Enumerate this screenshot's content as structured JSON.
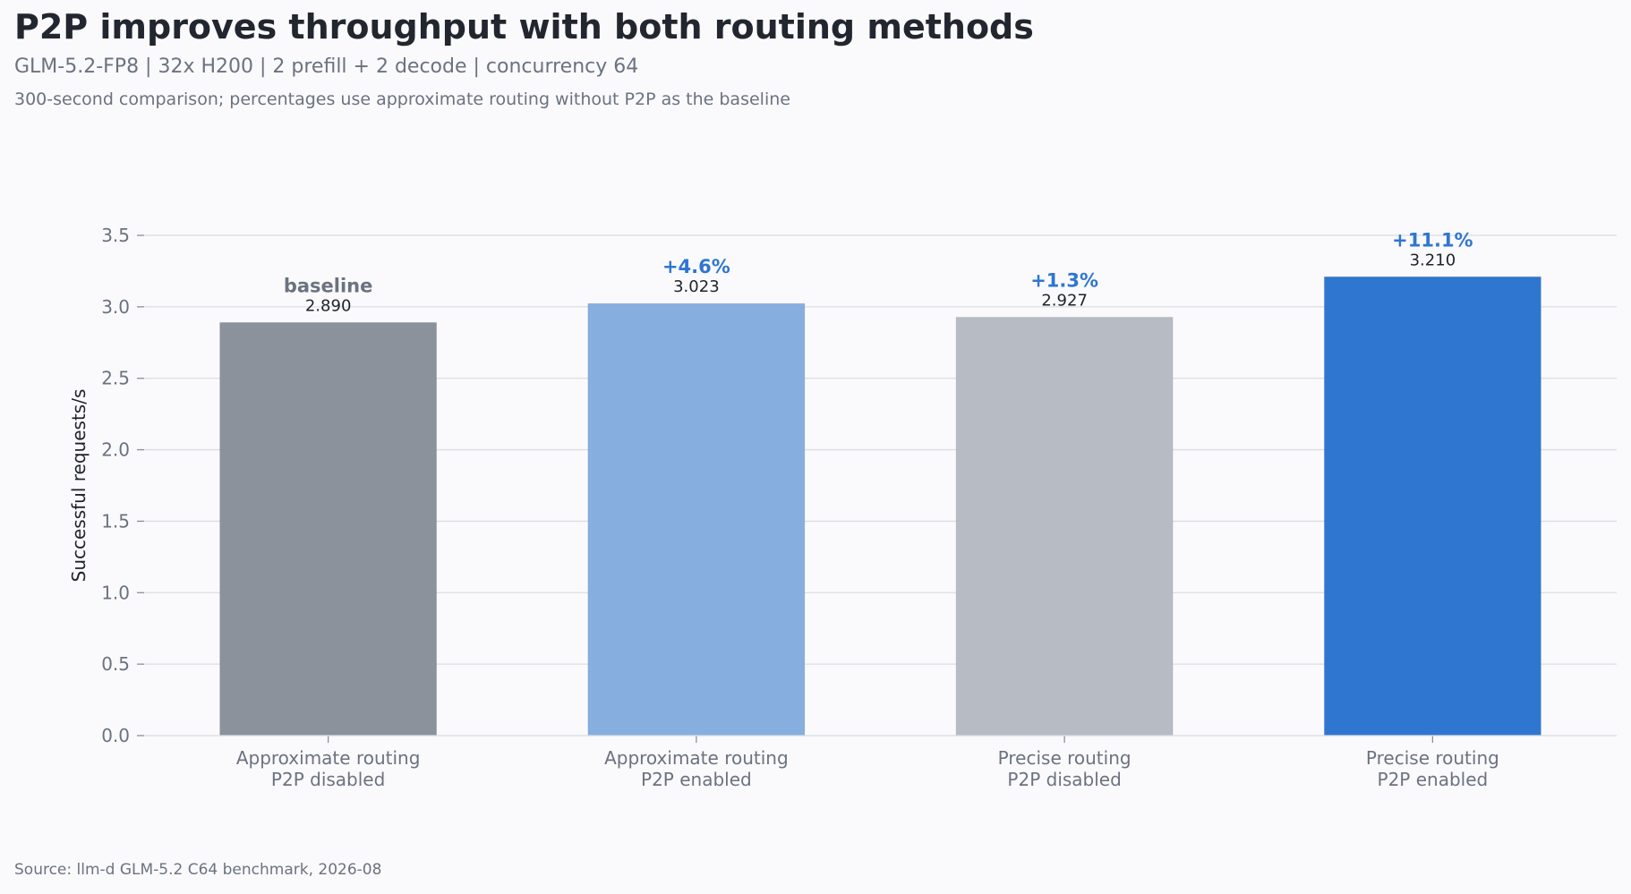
{
  "header": {
    "title": "P2P improves throughput with both routing methods",
    "subtitle": "GLM-5.2-FP8 | 32x H200 | 2 prefill + 2 decode | concurrency 64",
    "note": "300-second comparison; percentages use approximate routing without P2P as the baseline"
  },
  "footer": {
    "source": "Source: llm-d GLM-5.2 C64 benchmark, 2026-08"
  },
  "chart_data": {
    "type": "bar",
    "title": "P2P improves throughput with both routing methods",
    "xlabel": "",
    "ylabel": "Successful requests/s",
    "ylim": [
      0,
      3.5
    ],
    "yticks": [
      "0.0",
      "0.5",
      "1.0",
      "1.5",
      "2.0",
      "2.5",
      "3.0",
      "3.5"
    ],
    "grid": true,
    "categories": [
      [
        "Approximate routing",
        "P2P disabled"
      ],
      [
        "Approximate routing",
        "P2P enabled"
      ],
      [
        "Precise routing",
        "P2P disabled"
      ],
      [
        "Precise routing",
        "P2P enabled"
      ]
    ],
    "values": [
      2.89,
      3.023,
      2.927,
      3.21
    ],
    "value_labels": [
      "2.890",
      "3.023",
      "2.927",
      "3.210"
    ],
    "annotations": [
      "baseline",
      "+4.6%",
      "+1.3%",
      "+11.1%"
    ],
    "colors": [
      "#8b929c",
      "#86afe0",
      "#b7bbc3",
      "#2f76d0"
    ],
    "annotation_colors": [
      "#6b7280",
      "#2f76d0",
      "#2f76d0",
      "#2f76d0"
    ]
  }
}
